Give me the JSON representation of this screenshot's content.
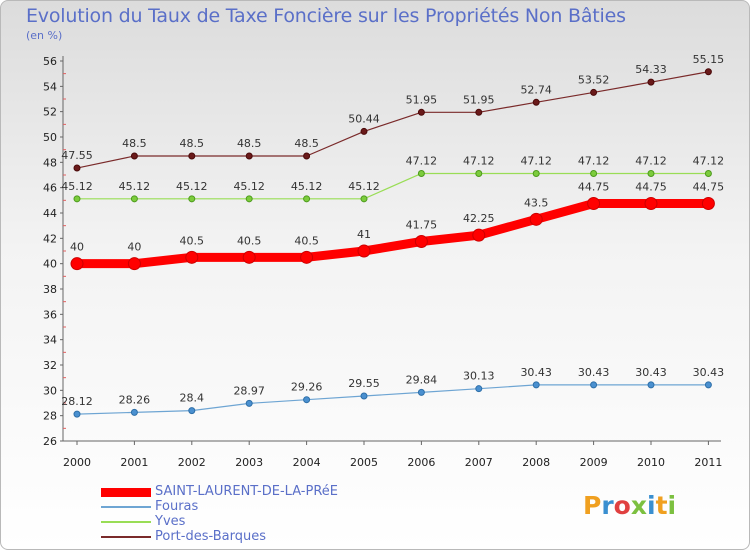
{
  "title": "Evolution du Taux de Taxe Foncière sur les Propriétés Non Bâties",
  "unit_label": "(en %)",
  "logo": {
    "text": "Proxiti"
  },
  "colors": {
    "saint_laurent": "#ff0000",
    "fouras": "#6ea5d3",
    "yves": "#99dd55",
    "port_des_barques": "#7a2a2a",
    "title": "#5a6fc8"
  },
  "chart_data": {
    "type": "line",
    "title": "Evolution du Taux de Taxe Foncière sur les Propriétés Non Bâties",
    "ylabel": "(en %)",
    "xlabel": "",
    "ylim": [
      26,
      56
    ],
    "yticks": [
      "26",
      "28",
      "30",
      "32",
      "34",
      "36",
      "38",
      "40",
      "42",
      "44",
      "46",
      "48",
      "50",
      "52",
      "54",
      "56"
    ],
    "categories": [
      "2000",
      "2001",
      "2002",
      "2003",
      "2004",
      "2005",
      "2006",
      "2007",
      "2008",
      "2009",
      "2010",
      "2011"
    ],
    "grid": false,
    "legend_position": "bottom-left",
    "series": [
      {
        "name": "SAINT-LAURENT-DE-LA-PRéE",
        "color": "#ff0000",
        "values": [
          40,
          40,
          40.5,
          40.5,
          40.5,
          41,
          41.75,
          42.25,
          43.5,
          44.75,
          44.75,
          44.75
        ],
        "labels": [
          "40",
          "40",
          "40.5",
          "40.5",
          "40.5",
          "41",
          "41.75",
          "42.25",
          "43.5",
          "44.75",
          "44.75",
          "44.75"
        ]
      },
      {
        "name": "Fouras",
        "color": "#6ea5d3",
        "values": [
          28.12,
          28.26,
          28.4,
          28.97,
          29.26,
          29.55,
          29.84,
          30.13,
          30.43,
          30.43,
          30.43,
          30.43
        ],
        "labels": [
          "28.12",
          "28.26",
          "28.4",
          "28.97",
          "29.26",
          "29.55",
          "29.84",
          "30.13",
          "30.43",
          "30.43",
          "30.43",
          "30.43"
        ]
      },
      {
        "name": "Yves",
        "color": "#99dd55",
        "values": [
          45.12,
          45.12,
          45.12,
          45.12,
          45.12,
          45.12,
          47.12,
          47.12,
          47.12,
          47.12,
          47.12,
          47.12
        ],
        "labels": [
          "45.12",
          "45.12",
          "45.12",
          "45.12",
          "45.12",
          "45.12",
          "47.12",
          "47.12",
          "47.12",
          "47.12",
          "47.12",
          "47.12"
        ]
      },
      {
        "name": "Port-des-Barques",
        "color": "#7a2a2a",
        "values": [
          47.55,
          48.5,
          48.5,
          48.5,
          48.5,
          50.44,
          51.95,
          51.95,
          52.74,
          53.52,
          54.33,
          55.15
        ],
        "labels": [
          "47.55",
          "48.5",
          "48.5",
          "48.5",
          "48.5",
          "50.44",
          "51.95",
          "51.95",
          "52.74",
          "53.52",
          "54.33",
          "55.15"
        ]
      }
    ]
  }
}
